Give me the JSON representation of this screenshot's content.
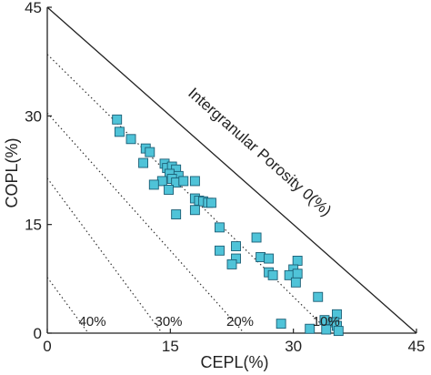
{
  "chart_data": {
    "type": "scatter",
    "title": "",
    "xlabel": "CEPL(%)",
    "ylabel": "COPL(%)",
    "xlim": [
      0,
      45
    ],
    "ylim": [
      0,
      45
    ],
    "xticks": [
      0,
      15,
      30,
      45
    ],
    "yticks": [
      0,
      15,
      30,
      45
    ],
    "grid": false,
    "legend": "none",
    "marker": "square",
    "marker_color": "#4fc3d8",
    "marker_edge_color": "#1b5e75",
    "boundary_line": {
      "label": "Intergranular Porosity 0(%)",
      "x_intercept": 45,
      "y_intercept": 45
    },
    "porosity_lines": [
      {
        "label": "40%",
        "x_intercept": 5.0,
        "y_intercept": 7.7
      },
      {
        "label": "30%",
        "x_intercept": 14.0,
        "y_intercept": 21.4
      },
      {
        "label": "20%",
        "x_intercept": 24.0,
        "y_intercept": 30.4
      },
      {
        "label": "10%",
        "x_intercept": 34.5,
        "y_intercept": 38.5
      }
    ],
    "points": [
      [
        8.5,
        29.5
      ],
      [
        8.8,
        27.8
      ],
      [
        10.2,
        26.8
      ],
      [
        12.0,
        25.5
      ],
      [
        12.5,
        25.0
      ],
      [
        11.7,
        23.5
      ],
      [
        14.3,
        23.4
      ],
      [
        14.6,
        22.8
      ],
      [
        15.2,
        23.0
      ],
      [
        15.7,
        22.6
      ],
      [
        14.9,
        22.0
      ],
      [
        16.0,
        21.7
      ],
      [
        15.2,
        21.3
      ],
      [
        14.0,
        21.0
      ],
      [
        15.7,
        20.8
      ],
      [
        16.6,
        21.0
      ],
      [
        18.0,
        21.0
      ],
      [
        13.0,
        20.5
      ],
      [
        14.8,
        19.8
      ],
      [
        18.0,
        18.6
      ],
      [
        18.5,
        18.3
      ],
      [
        19.0,
        18.2
      ],
      [
        19.6,
        18.0
      ],
      [
        20.0,
        18.0
      ],
      [
        18.0,
        17.0
      ],
      [
        15.7,
        16.4
      ],
      [
        21.0,
        14.6
      ],
      [
        23.0,
        12.0
      ],
      [
        25.5,
        13.2
      ],
      [
        21.0,
        11.4
      ],
      [
        23.0,
        10.3
      ],
      [
        22.5,
        9.5
      ],
      [
        26.0,
        10.5
      ],
      [
        27.0,
        10.3
      ],
      [
        30.5,
        10.0
      ],
      [
        30.0,
        8.8
      ],
      [
        27.0,
        8.4
      ],
      [
        27.5,
        8.0
      ],
      [
        29.5,
        8.0
      ],
      [
        30.5,
        8.2
      ],
      [
        30.3,
        7.0
      ],
      [
        33.0,
        5.0
      ],
      [
        32.0,
        0.6
      ],
      [
        33.8,
        1.8
      ],
      [
        35.3,
        2.6
      ],
      [
        35.0,
        1.5
      ],
      [
        35.3,
        1.0
      ],
      [
        28.5,
        1.3
      ],
      [
        34.0,
        0.5
      ],
      [
        35.5,
        0.3
      ]
    ]
  }
}
